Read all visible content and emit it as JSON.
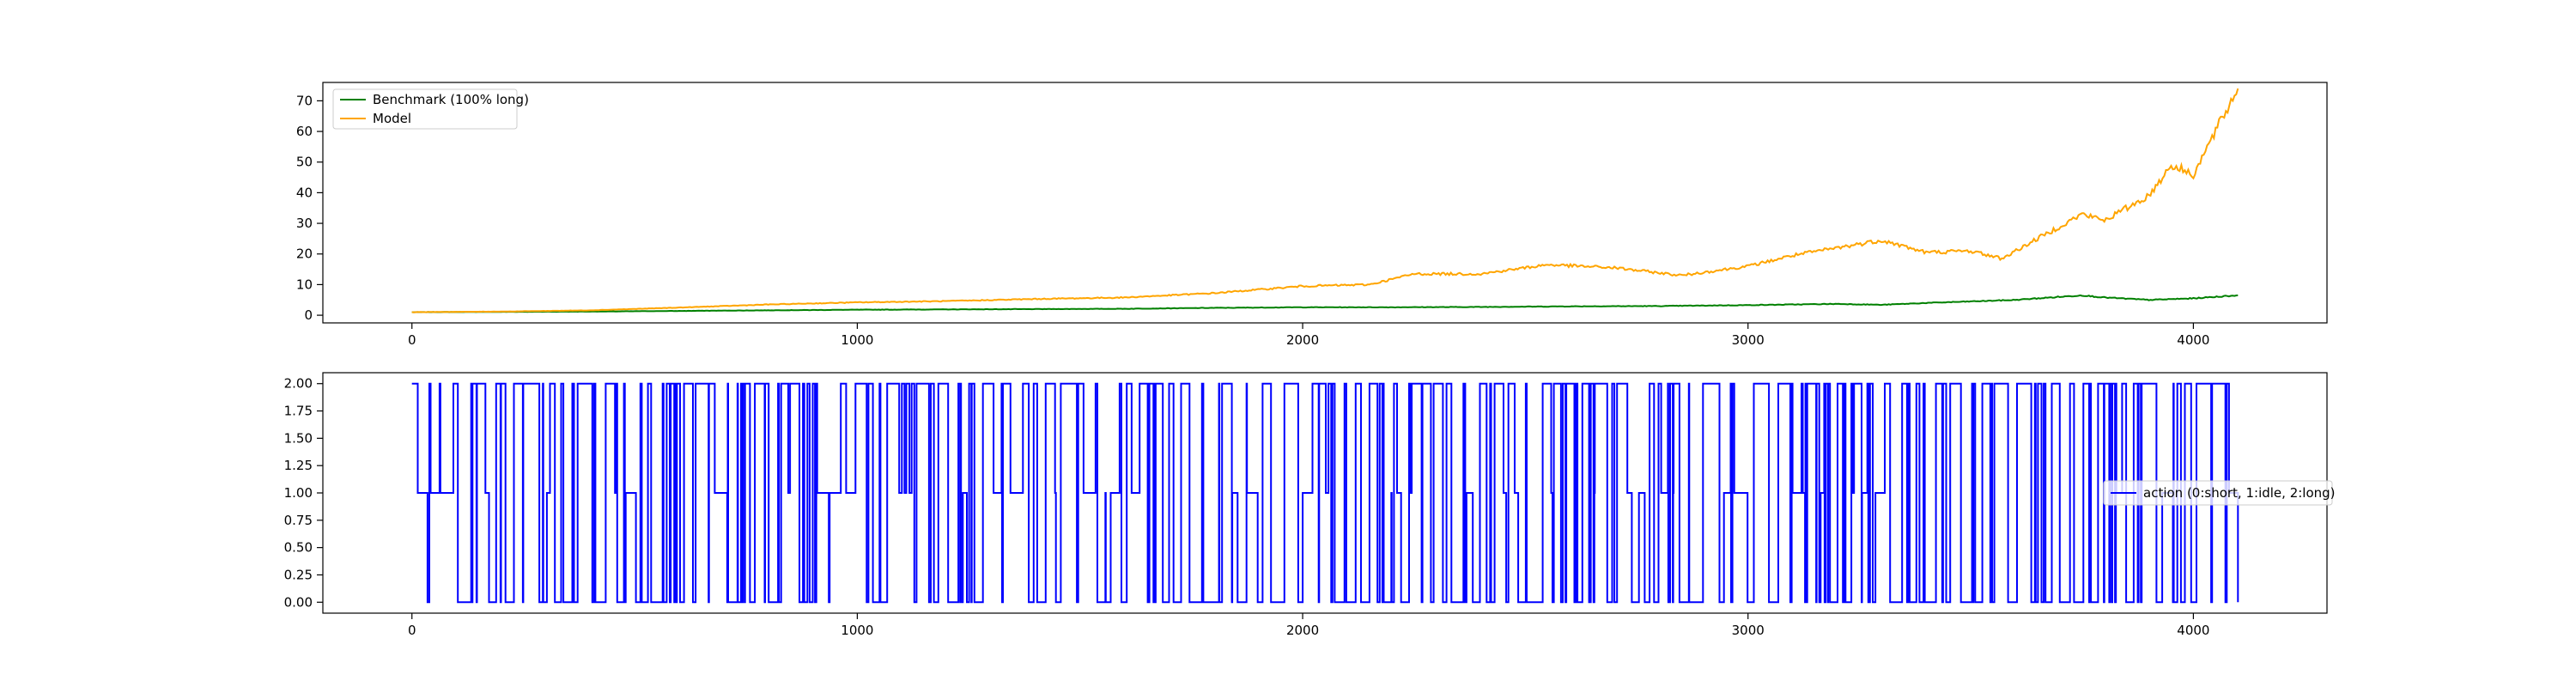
{
  "chart_data": [
    {
      "type": "line",
      "title": "",
      "xlabel": "",
      "ylabel": "",
      "xlim": [
        -200,
        4300
      ],
      "ylim": [
        -2.5,
        76
      ],
      "x_ticks": [
        0,
        1000,
        2000,
        3000,
        4000
      ],
      "x_tick_labels": [
        "0",
        "1000",
        "2000",
        "3000",
        "4000"
      ],
      "y_ticks": [
        0,
        10,
        20,
        30,
        40,
        50,
        60,
        70
      ],
      "y_tick_labels": [
        "0",
        "10",
        "20",
        "30",
        "40",
        "50",
        "60",
        "70"
      ],
      "grid": false,
      "legend_position": "upper-left",
      "series": [
        {
          "name": "Benchmark (100% long)",
          "color": "#008000",
          "x": [
            0,
            200,
            400,
            600,
            800,
            1000,
            1200,
            1400,
            1600,
            1800,
            2000,
            2200,
            2400,
            2600,
            2800,
            3000,
            3200,
            3300,
            3400,
            3600,
            3700,
            3750,
            3800,
            3900,
            4000,
            4100
          ],
          "y": [
            1.0,
            1.1,
            1.2,
            1.4,
            1.6,
            1.8,
            1.9,
            2.0,
            2.1,
            2.4,
            2.6,
            2.6,
            2.7,
            2.9,
            3.0,
            3.3,
            3.7,
            3.4,
            4.0,
            5.0,
            6.0,
            6.5,
            5.8,
            5.0,
            5.5,
            6.5
          ]
        },
        {
          "name": "Model",
          "color": "#FFA500",
          "x": [
            0,
            200,
            400,
            600,
            800,
            1000,
            1200,
            1400,
            1600,
            1800,
            2000,
            2150,
            2250,
            2400,
            2550,
            2700,
            2850,
            3000,
            3100,
            3200,
            3300,
            3400,
            3500,
            3570,
            3650,
            3750,
            3800,
            3900,
            3950,
            4000,
            4050,
            4100
          ],
          "y": [
            1.0,
            1.2,
            1.6,
            2.5,
            3.5,
            4.2,
            4.6,
            5.3,
            5.8,
            7.2,
            9.5,
            10.0,
            13.5,
            13.5,
            16.5,
            15.5,
            13.0,
            16.0,
            19.5,
            22.0,
            24.5,
            20.5,
            21.0,
            18.5,
            25.0,
            33.0,
            31.0,
            39.0,
            49.0,
            46.0,
            60.0,
            74.0
          ]
        }
      ]
    },
    {
      "type": "line",
      "title": "",
      "xlabel": "",
      "ylabel": "",
      "xlim": [
        -200,
        4300
      ],
      "ylim": [
        -0.1,
        2.1
      ],
      "x_ticks": [
        0,
        1000,
        2000,
        3000,
        4000
      ],
      "x_tick_labels": [
        "0",
        "1000",
        "2000",
        "3000",
        "4000"
      ],
      "y_ticks": [
        0.0,
        0.25,
        0.5,
        0.75,
        1.0,
        1.25,
        1.5,
        1.75,
        2.0
      ],
      "y_tick_labels": [
        "0.00",
        "0.25",
        "0.50",
        "0.75",
        "1.00",
        "1.25",
        "1.50",
        "1.75",
        "2.00"
      ],
      "grid": false,
      "legend_position": "center-right",
      "series": [
        {
          "name": "action (0:short, 1:idle, 2:long)",
          "color": "#0000FF",
          "value_levels": [
            0,
            1,
            2
          ],
          "x_range": [
            0,
            4100
          ],
          "switch_count": 900,
          "note_values": "step series alternating between 0, 1 and 2 over x from 0 to 4100"
        }
      ]
    }
  ]
}
